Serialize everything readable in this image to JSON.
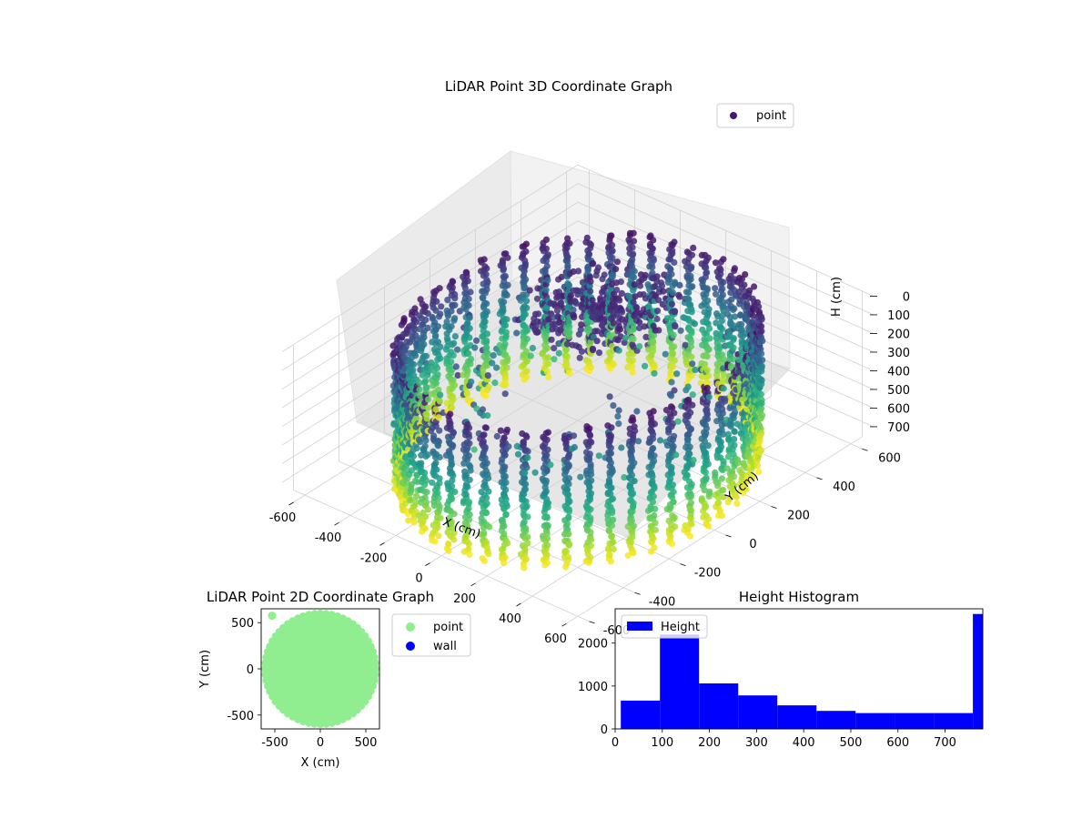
{
  "figure": {
    "background": "#ffffff"
  },
  "chart_data": [
    {
      "type": "scatter",
      "projection": "3d",
      "title": "LiDAR Point 3D Coordinate Graph",
      "xlabel": "X (cm)",
      "ylabel": "Y (cm)",
      "zlabel": "H (cm)",
      "xlim": [
        -650,
        650
      ],
      "ylim": [
        -650,
        650
      ],
      "zlim": [
        780,
        0
      ],
      "z_inverted": true,
      "xticks": [
        -600,
        -400,
        -200,
        0,
        200,
        400,
        600
      ],
      "yticks": [
        -600,
        -400,
        -200,
        0,
        200,
        400,
        600
      ],
      "zticks": [
        0,
        100,
        200,
        300,
        400,
        500,
        600,
        700
      ],
      "colormap": "viridis",
      "color_by": "height",
      "legend": {
        "placement": "upper-right",
        "entries": [
          {
            "label": "point",
            "color": "#46176a"
          }
        ]
      },
      "structure": {
        "wall_radius_cm": 560,
        "wall_height_cm": 780,
        "wall_column_count": 52,
        "top_cluster_center": [
          -80,
          180
        ],
        "top_cluster_height_cm": 60
      },
      "grid": true
    },
    {
      "type": "scatter",
      "title": "LiDAR Point 2D Coordinate Graph",
      "xlabel": "X (cm)",
      "ylabel": "Y (cm)",
      "xlim": [
        -650,
        650
      ],
      "ylim": [
        -650,
        650
      ],
      "xticks": [
        -500,
        0,
        500
      ],
      "yticks": [
        -500,
        0,
        500
      ],
      "legend": {
        "placement": "outside-right",
        "entries": [
          {
            "label": "point",
            "color": "#90ee90"
          },
          {
            "label": "wall",
            "color": "#0000ff"
          }
        ]
      },
      "series": [
        {
          "name": "point",
          "color": "#90ee90",
          "shape": "disk",
          "center": [
            0,
            0
          ],
          "radius": 600,
          "outlier": [
            -530,
            575
          ]
        },
        {
          "name": "wall",
          "color": "#0000ff",
          "values": []
        }
      ],
      "grid": false
    },
    {
      "type": "bar",
      "subtype": "histogram",
      "title": "Height Histogram",
      "xlim": [
        0,
        780
      ],
      "ylim": [
        0,
        2800
      ],
      "xticks": [
        0,
        100,
        200,
        300,
        400,
        500,
        600,
        700
      ],
      "yticks": [
        0,
        1000,
        2000
      ],
      "legend": {
        "placement": "upper-left",
        "entries": [
          {
            "label": "Height",
            "color": "#0000ff"
          }
        ]
      },
      "bins": [
        {
          "x0": 12,
          "x1": 95,
          "count": 660
        },
        {
          "x0": 95,
          "x1": 178,
          "count": 2200
        },
        {
          "x0": 178,
          "x1": 261,
          "count": 1060
        },
        {
          "x0": 261,
          "x1": 344,
          "count": 780
        },
        {
          "x0": 344,
          "x1": 427,
          "count": 550
        },
        {
          "x0": 427,
          "x1": 510,
          "count": 420
        },
        {
          "x0": 510,
          "x1": 593,
          "count": 370
        },
        {
          "x0": 593,
          "x1": 676,
          "count": 370
        },
        {
          "x0": 676,
          "x1": 759,
          "count": 370
        },
        {
          "x0": 759,
          "x1": 780,
          "count": 2680
        }
      ],
      "grid": false
    }
  ]
}
